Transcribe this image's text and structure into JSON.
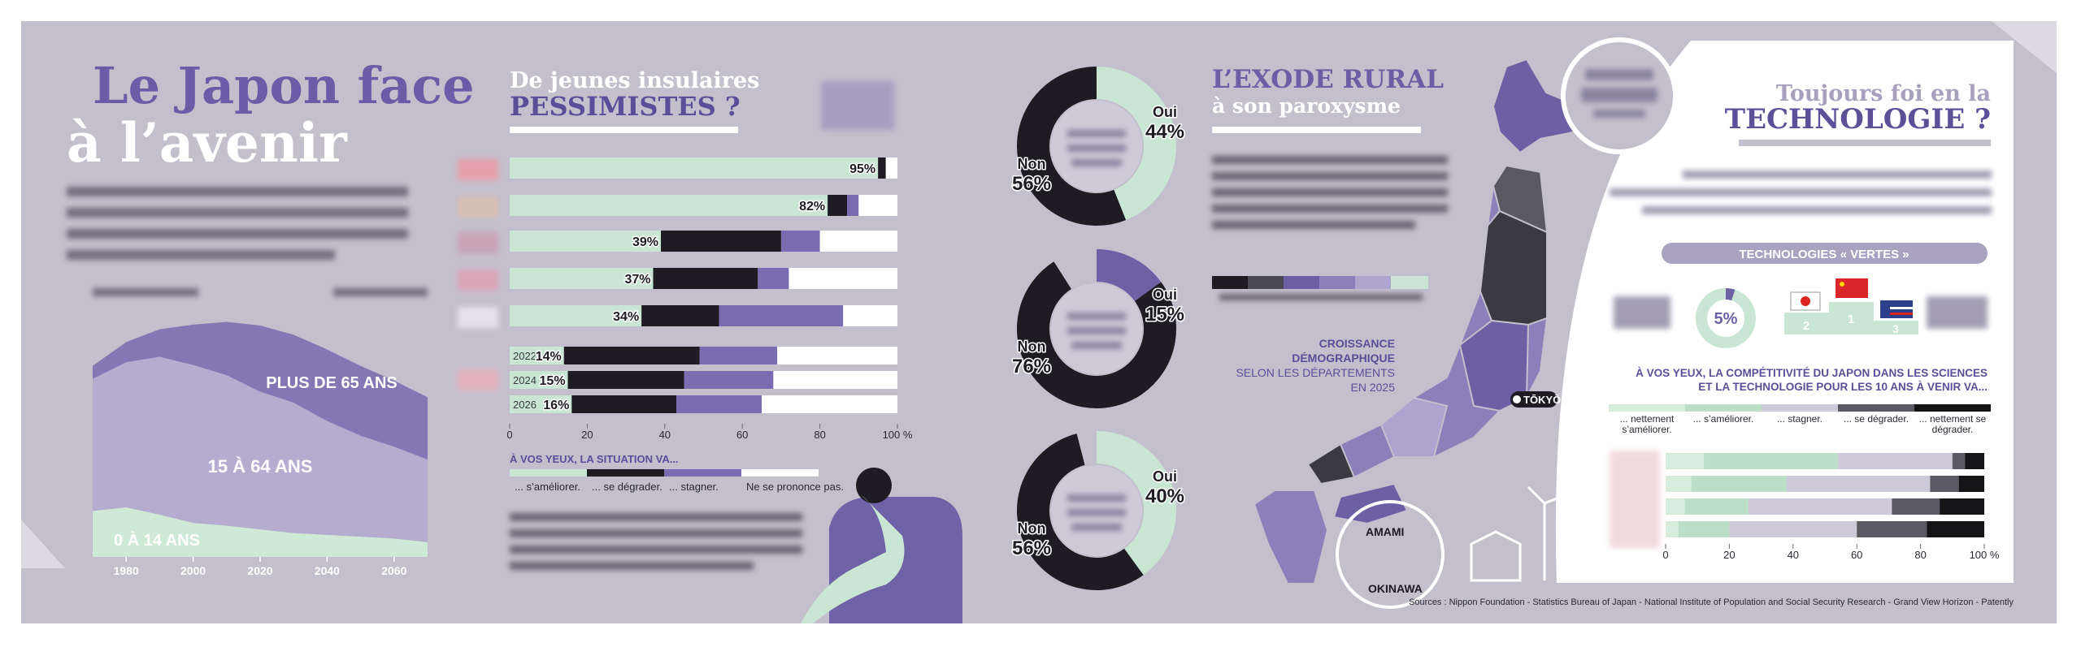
{
  "intro": {
    "title_1": "Le Japon face",
    "title_2": "à l’avenir"
  },
  "section_2": {
    "title_1": "De jeunes insulaires",
    "title_2": "PESSIMISTES ?"
  },
  "exode": {
    "title_1": "L’EXODE RURAL",
    "title_2": "à son paroxysme",
    "legend_lines": [
      "CROISSANCE",
      "DÉMOGRAPHIQUE",
      "SELON LES DÉPARTEMENTS",
      "EN 2025"
    ],
    "city": "TŌKYŌ",
    "inset_labels": [
      "AMAMI",
      "OKINAWA"
    ]
  },
  "tech": {
    "title_1": "Toujours foi en la",
    "title_2": "TECHNOLOGIE ?",
    "green_title": "TECHNOLOGIES « VERTES »",
    "podium_ranks": [
      "2",
      "1",
      "3"
    ]
  },
  "sources": "Sources : Nippon Foundation - Statistics Bureau of Japan - National Institute of Population and Social Security Research - Grand View Horizon - Patently",
  "chart_data": [
    {
      "type": "area",
      "x": [
        1970,
        1980,
        1990,
        2000,
        2010,
        2020,
        2030,
        2040,
        2050,
        2060,
        2070
      ],
      "xlim": [
        1970,
        2070
      ],
      "xticks": [
        1980,
        2000,
        2020,
        2040,
        2060
      ],
      "ylim": [
        0,
        130
      ],
      "series": [
        {
          "name": "0 À 14 ANS",
          "color": "#cfe9d7",
          "values": [
            25,
            27,
            23,
            18.5,
            17,
            15,
            13,
            12,
            11,
            10,
            8
          ]
        },
        {
          "name": "15 À 64 ANS",
          "color": "#b5acd0",
          "values": [
            72,
            79,
            86,
            86,
            82,
            75,
            71,
            62,
            55,
            50,
            45
          ]
        },
        {
          "name": "PLUS DE 65 ANS",
          "color": "#8477b4",
          "values": [
            7,
            11,
            15,
            22,
            29,
            36,
            37,
            39,
            38,
            36,
            34
          ]
        }
      ]
    },
    {
      "type": "hbar",
      "categories": [
        null,
        null,
        null,
        null,
        null,
        "2022",
        "2024",
        "2026"
      ],
      "legend_title": "À VOS YEUX, LA SITUATION VA...",
      "xlim": [
        0,
        100
      ],
      "xticks": [
        0,
        20,
        40,
        60,
        80,
        {
          "value": 100,
          "label": "100 %"
        }
      ],
      "series": [
        {
          "name": "... s’améliorer.",
          "color": "#c8e6d3",
          "values": [
            95,
            82,
            39,
            37,
            34,
            14,
            15,
            16
          ],
          "value_labels": [
            "95%",
            "82%",
            "39%",
            "37%",
            "34%",
            "14%",
            "15%",
            "16%"
          ]
        },
        {
          "name": "... se dégrader.",
          "color": "#1e1c22",
          "values": [
            2,
            5,
            31,
            27,
            20,
            35,
            30,
            27
          ]
        },
        {
          "name": "... stagner.",
          "color": "#7a6cb0",
          "values": [
            0,
            3,
            10,
            8,
            32,
            20,
            23,
            22
          ]
        },
        {
          "name": "Ne se prononce pas.",
          "color": "#ffffff",
          "values": [
            3,
            10,
            20,
            28,
            14,
            31,
            32,
            35
          ]
        }
      ]
    },
    {
      "type": "pie",
      "categories": [
        "Oui",
        "Non"
      ],
      "values": [
        44,
        56
      ],
      "value_labels": [
        "44%",
        "56%"
      ],
      "colors": [
        "#c8e6d3",
        "#1e1c22"
      ]
    },
    {
      "type": "pie",
      "categories": [
        "Oui",
        "Non"
      ],
      "values": [
        15,
        76
      ],
      "value_labels": [
        "15%",
        "76%"
      ],
      "colors": [
        "#6e60a5",
        "#1e1c22"
      ]
    },
    {
      "type": "pie",
      "categories": [
        "Oui",
        "Non"
      ],
      "values": [
        40,
        56
      ],
      "value_labels": [
        "40%",
        "56%"
      ],
      "colors": [
        "#c8e6d3",
        "#1e1c22"
      ]
    },
    {
      "type": "hbar",
      "categories": [
        null,
        null,
        null,
        null
      ],
      "legend_title_lines": [
        "À VOS YEUX, LA COMPÉTITIVITÉ DU JAPON DANS LES SCIENCES",
        "ET LA TECHNOLOGIE POUR LES 10 ANS À VENIR VA..."
      ],
      "xlim": [
        0,
        100
      ],
      "xticks": [
        0,
        20,
        40,
        60,
        80,
        {
          "value": 100,
          "label": "100 %"
        }
      ],
      "series": [
        {
          "name": "... nettement s’améliorer.",
          "color": "#d7ecdd",
          "values": [
            12,
            8,
            6,
            4
          ]
        },
        {
          "name": "... s’améliorer.",
          "color": "#bcdfc9",
          "values": [
            42,
            30,
            20,
            16
          ]
        },
        {
          "name": "... stagner.",
          "color": "#cfcad9",
          "values": [
            36,
            45,
            45,
            40
          ]
        },
        {
          "name": "... se dégrader.",
          "color": "#5a5860",
          "values": [
            4,
            9,
            15,
            22
          ]
        },
        {
          "name": "... nettement se dégrader.",
          "color": "#141316",
          "values": [
            6,
            8,
            14,
            18
          ]
        }
      ]
    },
    {
      "type": "pie",
      "values": [
        5
      ],
      "value_labels": [
        "5%"
      ],
      "colors": [
        "#6e60a5"
      ]
    }
  ]
}
